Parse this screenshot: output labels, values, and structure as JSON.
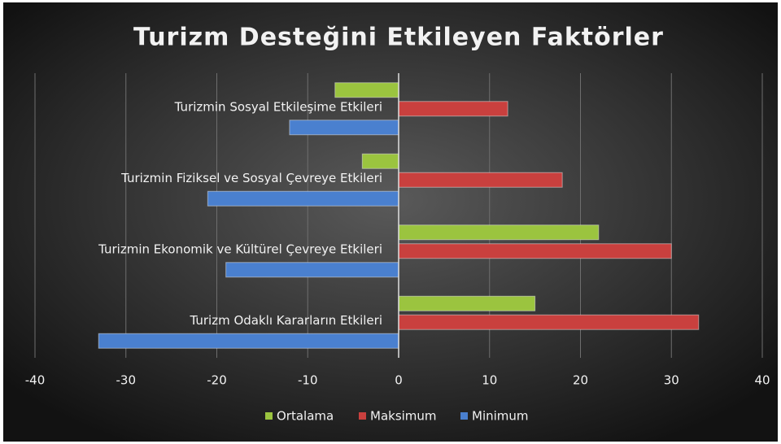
{
  "chart_data": {
    "type": "hbar",
    "title": "Turizm Desteğini Etkileyen Faktörler",
    "categories": [
      "Turizmin Sosyal Etkileşime Etkileri",
      "Turizmin Fiziksel ve Sosyal Çevreye Etkileri",
      "Turizmin Ekonomik ve Kültürel Çevreye Etkileri",
      "Turizm Odaklı Kararların Etkileri"
    ],
    "series": [
      {
        "name": "Ortalama",
        "color": "#9bc43f",
        "values": [
          -7,
          -4,
          22,
          15
        ]
      },
      {
        "name": "Maksimum",
        "color": "#c9403e",
        "values": [
          12,
          18,
          30,
          33
        ]
      },
      {
        "name": "Minimum",
        "color": "#4a80cf",
        "values": [
          -12,
          -21,
          -19,
          -33
        ]
      }
    ],
    "xlim": [
      -40,
      40
    ],
    "xticks": [
      -40,
      -30,
      -20,
      -10,
      0,
      10,
      20,
      30,
      40
    ],
    "grid": true,
    "legend": "bottom"
  }
}
